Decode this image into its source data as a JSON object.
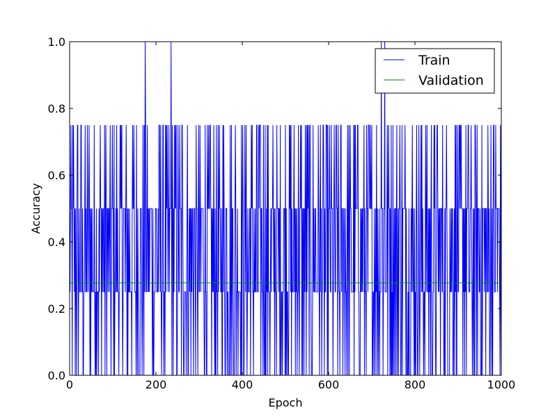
{
  "chart_data": {
    "type": "line",
    "title": "",
    "xlabel": "Epoch",
    "ylabel": "Accuracy",
    "xlim": [
      0,
      1000
    ],
    "ylim": [
      0.0,
      1.0
    ],
    "xticks": [
      "0",
      "200",
      "400",
      "600",
      "800",
      "1000"
    ],
    "yticks": [
      "0.0",
      "0.2",
      "0.4",
      "0.6",
      "0.8",
      "1.0"
    ],
    "grid": false,
    "legend_position": "top-right",
    "series": [
      {
        "name": "Train",
        "color": "#0000ff",
        "value_levels": [
          0,
          0.25,
          0.5,
          0.75,
          1.0
        ],
        "epochs": 1000,
        "peak_epochs": [
          175,
          235,
          722,
          730
        ]
      },
      {
        "name": "Validation",
        "color": "#008000",
        "constant_value": 0.277
      }
    ]
  }
}
